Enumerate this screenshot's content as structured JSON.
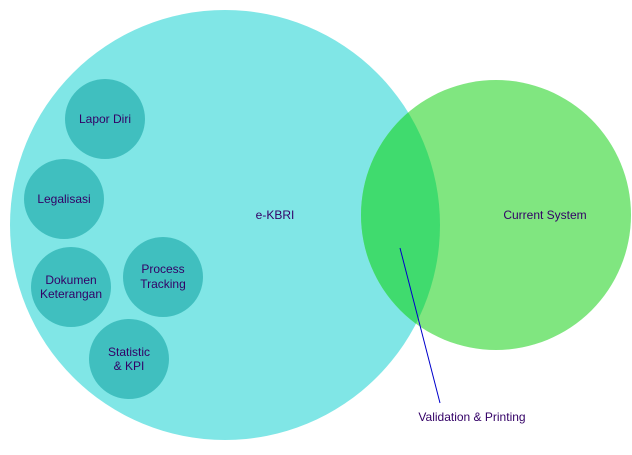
{
  "diagram": {
    "big_circle": {
      "label": "e-KBRI",
      "color": "#80E6E6"
    },
    "right_circle": {
      "label": "Current System",
      "color": "#80E680"
    },
    "overlap": {
      "color": "#40DB6E"
    },
    "sub_circle_color": "#40BFBF",
    "text_color": "#330066",
    "sub_items": [
      {
        "lines": [
          "Lapor Diri"
        ]
      },
      {
        "lines": [
          "Legalisasi"
        ]
      },
      {
        "lines": [
          "Dokumen",
          "Keterangan"
        ]
      },
      {
        "lines": [
          "Process",
          "Tracking"
        ]
      },
      {
        "lines": [
          "Statistic",
          "& KPI"
        ]
      }
    ],
    "callout": {
      "label": "Validation & Printing",
      "line_color": "#0000CC"
    }
  }
}
